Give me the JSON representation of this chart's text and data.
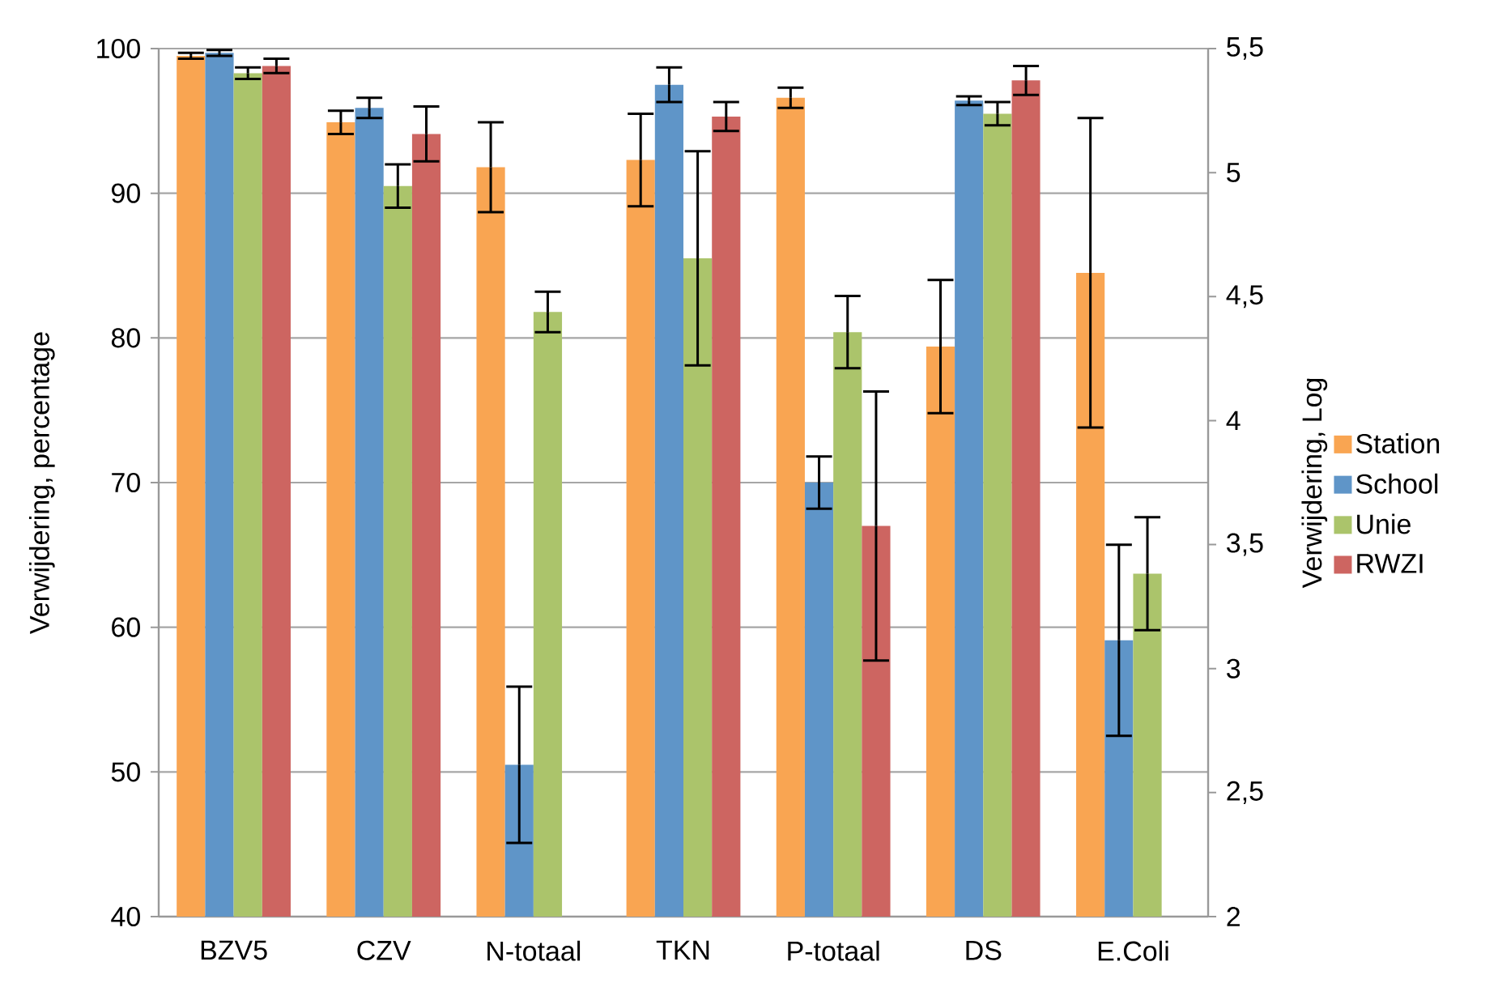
{
  "chart_data": {
    "type": "bar",
    "ylabel": "Verwijdering, percentage",
    "y2label": "Verwijdering, Log",
    "categories": [
      "BZV5",
      "CZV",
      "N-totaal",
      "TKN",
      "P-totaal",
      "DS",
      "E.Coli"
    ],
    "series": [
      {
        "name": "Station",
        "color": "#f9a552",
        "values": [
          99.5,
          94.9,
          91.8,
          92.3,
          96.6,
          79.4,
          84.5
        ],
        "errors": [
          0.2,
          0.8,
          3.1,
          3.2,
          0.7,
          4.6,
          10.7
        ]
      },
      {
        "name": "School",
        "color": "#5f95c8",
        "values": [
          99.7,
          95.9,
          50.5,
          97.5,
          70.0,
          96.4,
          59.1
        ],
        "errors": [
          0.2,
          0.7,
          5.4,
          1.2,
          1.8,
          0.3,
          6.6
        ]
      },
      {
        "name": "Unie",
        "color": "#abc46b",
        "values": [
          98.3,
          90.5,
          81.8,
          85.5,
          80.4,
          95.5,
          63.7
        ],
        "errors": [
          0.4,
          1.5,
          1.4,
          7.4,
          2.5,
          0.8,
          3.9
        ]
      },
      {
        "name": "RWZI",
        "color": "#cd6561",
        "values": [
          98.8,
          94.1,
          null,
          95.3,
          67.0,
          97.8,
          null
        ],
        "errors": [
          0.5,
          1.9,
          null,
          1.0,
          9.3,
          1.0,
          null
        ]
      }
    ],
    "ylim": [
      40,
      100
    ],
    "yticks": [
      40,
      50,
      60,
      70,
      80,
      90,
      100
    ],
    "y2lim": [
      2,
      5.5
    ],
    "y2ticks": [
      2,
      {
        "value": 2.5,
        "label": "2,5"
      },
      3,
      {
        "value": 3.5,
        "label": "3,5"
      },
      4,
      {
        "value": 4.5,
        "label": "4,5"
      },
      5,
      {
        "value": 5.5,
        "label": "5,5"
      }
    ],
    "grid": "y",
    "legend": "right"
  }
}
